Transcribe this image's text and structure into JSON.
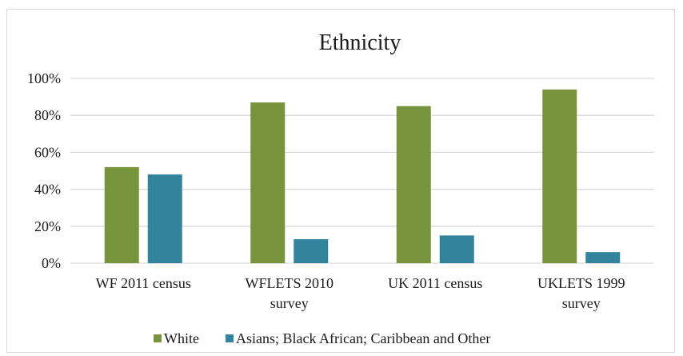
{
  "chart_data": {
    "type": "bar",
    "title": "Ethnicity",
    "categories": [
      [
        "WF 2011 census"
      ],
      [
        "WFLETS 2010",
        "survey"
      ],
      [
        "UK 2011 census"
      ],
      [
        "UKLETS 1999",
        "survey"
      ]
    ],
    "series": [
      {
        "name": "White",
        "color": "#77933c",
        "values": [
          52,
          87,
          85,
          94
        ]
      },
      {
        "name": "Asians; Black African; Caribbean and Other",
        "color": "#31849b",
        "values": [
          48,
          13,
          15,
          6
        ]
      }
    ],
    "ylim": [
      0,
      100
    ],
    "yticks": [
      0,
      20,
      40,
      60,
      80,
      100
    ],
    "ytick_labels": [
      "0%",
      "20%",
      "40%",
      "60%",
      "80%",
      "100%"
    ],
    "grid": true,
    "legend_position": "bottom"
  }
}
